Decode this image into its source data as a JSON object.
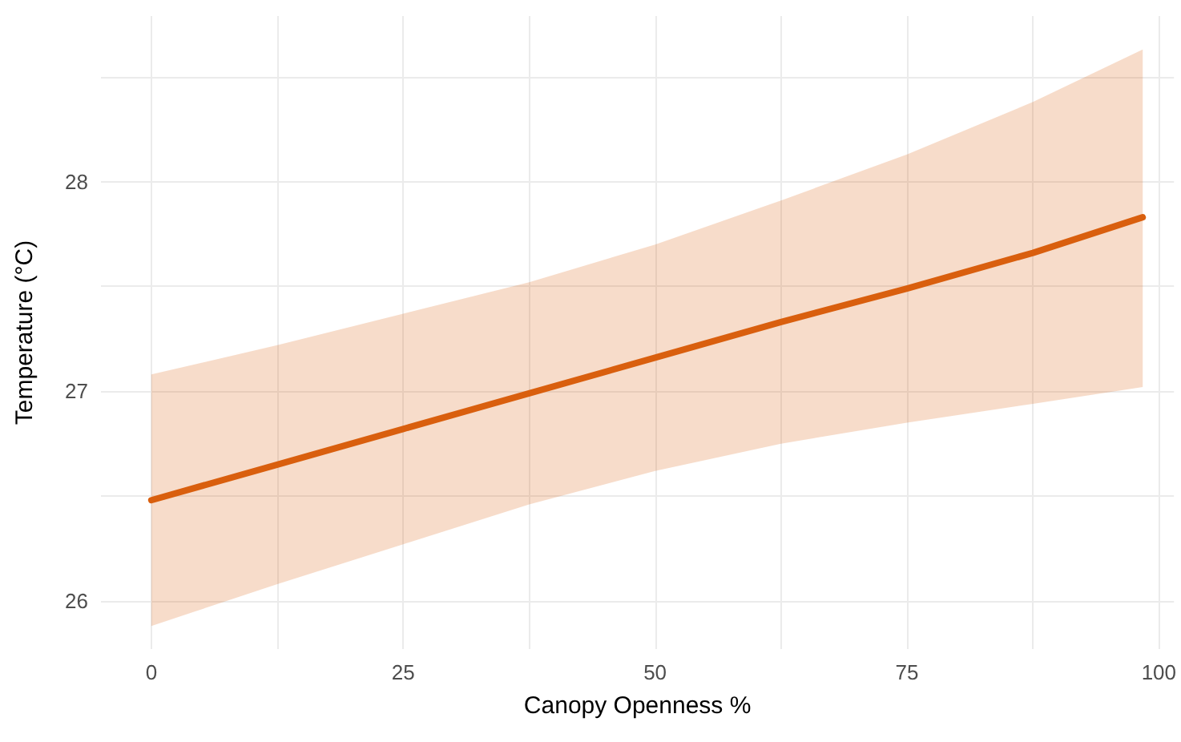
{
  "chart_data": {
    "type": "line",
    "xlabel": "Canopy Openness %",
    "ylabel": "Temperature (°C)",
    "x": [
      0,
      12.5,
      25,
      37.5,
      50,
      62.5,
      75,
      87.5,
      98.4
    ],
    "series": [
      {
        "color": "#d95f0e",
        "values": [
          26.48,
          26.65,
          26.82,
          26.99,
          27.16,
          27.33,
          27.49,
          27.66,
          27.83
        ],
        "lower": [
          25.88,
          26.08,
          26.27,
          26.46,
          26.62,
          26.75,
          26.85,
          26.94,
          27.02
        ],
        "upper": [
          27.08,
          27.22,
          27.37,
          27.52,
          27.7,
          27.91,
          28.13,
          28.38,
          28.63
        ]
      }
    ],
    "xlim": [
      -5,
      101.5
    ],
    "ylim": [
      25.77,
      28.79
    ],
    "xticks": [
      0,
      {
        "value": 12.5,
        "label": null
      },
      25,
      {
        "value": 37.5,
        "label": null
      },
      50,
      {
        "value": 62.5,
        "label": null
      },
      75,
      {
        "value": 87.5,
        "label": null
      },
      100
    ],
    "yticks": [
      26,
      {
        "value": 26.5,
        "label": null
      },
      27,
      {
        "value": 27.5,
        "label": null
      },
      28,
      {
        "value": 28.5,
        "label": null
      }
    ],
    "grid": true,
    "marker": "none",
    "line_style": "solid"
  }
}
